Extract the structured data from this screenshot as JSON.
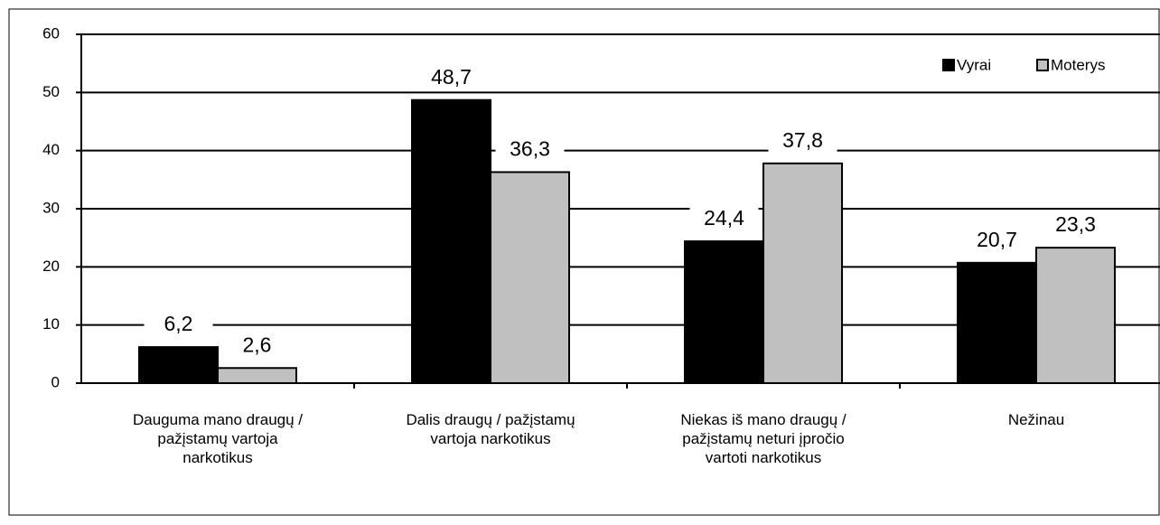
{
  "chart_data": {
    "type": "bar",
    "categories": [
      [
        "Dauguma mano draugų /",
        "pažįstamų vartoja",
        "narkotikus"
      ],
      [
        "Dalis draugų / pažįstamų",
        "vartoja narkotikus"
      ],
      [
        "Niekas iš mano draugų /",
        "pažįstamų neturi įpročio",
        "vartoti narkotikus"
      ],
      [
        "Nežinau"
      ]
    ],
    "series": [
      {
        "name": "Vyrai",
        "color": "#000000",
        "values": [
          6.2,
          48.7,
          24.4,
          20.7
        ],
        "value_labels": [
          "6,2",
          "48,7",
          "24,4",
          "20,7"
        ]
      },
      {
        "name": "Moterys",
        "color": "#c0c0c0",
        "values": [
          2.6,
          36.3,
          37.8,
          23.3
        ],
        "value_labels": [
          "2,6",
          "36,3",
          "37,8",
          "23,3"
        ]
      }
    ],
    "ylim": [
      0,
      60
    ],
    "yticks": [
      0,
      10,
      20,
      30,
      40,
      50,
      60
    ],
    "grid": true,
    "legend": "top-right"
  }
}
